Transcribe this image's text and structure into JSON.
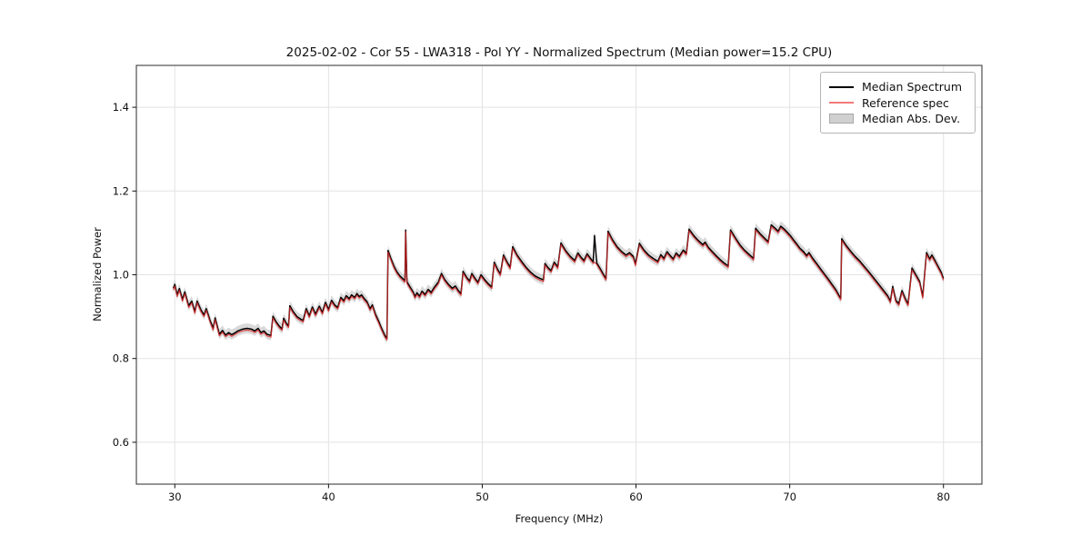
{
  "chart_data": {
    "type": "line",
    "title": "2025-02-02 - Cor 55 - LWA318 - Pol YY - Normalized Spectrum (Median power=15.2 CPU)",
    "xlabel": "Frequency (MHz)",
    "ylabel": "Normalized Power",
    "xlim": [
      27.5,
      82.5
    ],
    "ylim": [
      0.5,
      1.5
    ],
    "xticks": [
      30,
      40,
      50,
      60,
      70,
      80
    ],
    "yticks": [
      0.6,
      0.8,
      1.0,
      1.2,
      1.4
    ],
    "grid": true,
    "grid_color": "#e3e3e3",
    "spine_color": "#2b2b2b",
    "legend": {
      "position": "upper right",
      "entries": [
        {
          "label": "Median Spectrum",
          "swatch": "line",
          "color": "#000000"
        },
        {
          "label": "Reference spec",
          "swatch": "line",
          "color": "#f47a7a"
        },
        {
          "label": "Median Abs. Dev.",
          "swatch": "patch",
          "color": "#d0d0d0",
          "edge_color": "#a8a8a8"
        }
      ]
    },
    "series": [
      {
        "name": "Median Spectrum",
        "type": "line",
        "color": "#000000",
        "width": 1.5,
        "points": [
          [
            29.9,
            0.968
          ],
          [
            30.0,
            0.977
          ],
          [
            30.15,
            0.952
          ],
          [
            30.3,
            0.967
          ],
          [
            30.5,
            0.941
          ],
          [
            30.65,
            0.959
          ],
          [
            30.9,
            0.926
          ],
          [
            31.1,
            0.937
          ],
          [
            31.3,
            0.912
          ],
          [
            31.45,
            0.937
          ],
          [
            31.7,
            0.916
          ],
          [
            31.9,
            0.904
          ],
          [
            32.05,
            0.919
          ],
          [
            32.3,
            0.89
          ],
          [
            32.5,
            0.872
          ],
          [
            32.62,
            0.897
          ],
          [
            32.9,
            0.858
          ],
          [
            33.1,
            0.867
          ],
          [
            33.3,
            0.856
          ],
          [
            33.5,
            0.862
          ],
          [
            33.7,
            0.857
          ],
          [
            33.9,
            0.861
          ],
          [
            34.1,
            0.866
          ],
          [
            34.4,
            0.87
          ],
          [
            34.7,
            0.872
          ],
          [
            35.0,
            0.87
          ],
          [
            35.2,
            0.866
          ],
          [
            35.42,
            0.872
          ],
          [
            35.6,
            0.862
          ],
          [
            35.8,
            0.866
          ],
          [
            36.0,
            0.858
          ],
          [
            36.25,
            0.855
          ],
          [
            36.38,
            0.901
          ],
          [
            36.6,
            0.887
          ],
          [
            36.8,
            0.877
          ],
          [
            36.98,
            0.871
          ],
          [
            37.08,
            0.896
          ],
          [
            37.25,
            0.884
          ],
          [
            37.4,
            0.878
          ],
          [
            37.48,
            0.926
          ],
          [
            37.7,
            0.912
          ],
          [
            37.95,
            0.9
          ],
          [
            38.2,
            0.894
          ],
          [
            38.35,
            0.891
          ],
          [
            38.55,
            0.919
          ],
          [
            38.75,
            0.902
          ],
          [
            38.95,
            0.923
          ],
          [
            39.15,
            0.906
          ],
          [
            39.4,
            0.925
          ],
          [
            39.6,
            0.91
          ],
          [
            39.8,
            0.934
          ],
          [
            40.0,
            0.917
          ],
          [
            40.2,
            0.939
          ],
          [
            40.4,
            0.928
          ],
          [
            40.6,
            0.922
          ],
          [
            40.8,
            0.946
          ],
          [
            41.0,
            0.938
          ],
          [
            41.15,
            0.95
          ],
          [
            41.35,
            0.943
          ],
          [
            41.5,
            0.952
          ],
          [
            41.7,
            0.946
          ],
          [
            41.85,
            0.955
          ],
          [
            42.0,
            0.948
          ],
          [
            42.15,
            0.952
          ],
          [
            42.3,
            0.944
          ],
          [
            42.5,
            0.936
          ],
          [
            42.7,
            0.919
          ],
          [
            42.85,
            0.928
          ],
          [
            43.05,
            0.906
          ],
          [
            43.25,
            0.89
          ],
          [
            43.45,
            0.872
          ],
          [
            43.65,
            0.856
          ],
          [
            43.8,
            0.848
          ],
          [
            43.87,
            1.058
          ],
          [
            44.05,
            1.04
          ],
          [
            44.25,
            1.021
          ],
          [
            44.45,
            1.007
          ],
          [
            44.65,
            0.997
          ],
          [
            44.85,
            0.99
          ],
          [
            44.97,
            0.986
          ],
          [
            45.02,
            1.107
          ],
          [
            45.1,
            0.983
          ],
          [
            45.3,
            0.971
          ],
          [
            45.5,
            0.959
          ],
          [
            45.62,
            0.948
          ],
          [
            45.75,
            0.957
          ],
          [
            45.92,
            0.949
          ],
          [
            46.08,
            0.961
          ],
          [
            46.28,
            0.953
          ],
          [
            46.48,
            0.965
          ],
          [
            46.68,
            0.958
          ],
          [
            46.88,
            0.97
          ],
          [
            47.15,
            0.983
          ],
          [
            47.35,
            1.003
          ],
          [
            47.55,
            0.989
          ],
          [
            47.8,
            0.977
          ],
          [
            48.05,
            0.968
          ],
          [
            48.25,
            0.973
          ],
          [
            48.45,
            0.962
          ],
          [
            48.62,
            0.955
          ],
          [
            48.75,
            1.008
          ],
          [
            48.98,
            0.994
          ],
          [
            49.18,
            0.985
          ],
          [
            49.32,
            1.003
          ],
          [
            49.52,
            0.992
          ],
          [
            49.72,
            0.982
          ],
          [
            49.92,
            1.0
          ],
          [
            50.12,
            0.99
          ],
          [
            50.38,
            0.979
          ],
          [
            50.62,
            0.971
          ],
          [
            50.78,
            1.03
          ],
          [
            50.98,
            1.014
          ],
          [
            51.18,
            1.002
          ],
          [
            51.38,
            1.047
          ],
          [
            51.62,
            1.03
          ],
          [
            51.82,
            1.018
          ],
          [
            51.98,
            1.067
          ],
          [
            52.25,
            1.048
          ],
          [
            52.55,
            1.032
          ],
          [
            52.85,
            1.018
          ],
          [
            53.15,
            1.006
          ],
          [
            53.45,
            0.997
          ],
          [
            53.75,
            0.991
          ],
          [
            53.98,
            0.988
          ],
          [
            54.08,
            1.027
          ],
          [
            54.28,
            1.017
          ],
          [
            54.48,
            1.01
          ],
          [
            54.68,
            1.03
          ],
          [
            54.92,
            1.019
          ],
          [
            55.12,
            1.076
          ],
          [
            55.42,
            1.058
          ],
          [
            55.72,
            1.044
          ],
          [
            56.02,
            1.034
          ],
          [
            56.22,
            1.052
          ],
          [
            56.42,
            1.042
          ],
          [
            56.62,
            1.034
          ],
          [
            56.82,
            1.05
          ],
          [
            57.02,
            1.04
          ],
          [
            57.22,
            1.031
          ],
          [
            57.3,
            1.094
          ],
          [
            57.45,
            1.028
          ],
          [
            57.65,
            1.016
          ],
          [
            57.85,
            1.003
          ],
          [
            58.05,
            0.991
          ],
          [
            58.18,
            1.104
          ],
          [
            58.45,
            1.085
          ],
          [
            58.75,
            1.068
          ],
          [
            59.05,
            1.056
          ],
          [
            59.35,
            1.047
          ],
          [
            59.58,
            1.053
          ],
          [
            59.82,
            1.044
          ],
          [
            59.97,
            1.026
          ],
          [
            60.22,
            1.075
          ],
          [
            60.52,
            1.059
          ],
          [
            60.82,
            1.047
          ],
          [
            61.12,
            1.039
          ],
          [
            61.42,
            1.032
          ],
          [
            61.62,
            1.048
          ],
          [
            61.82,
            1.039
          ],
          [
            62.02,
            1.055
          ],
          [
            62.22,
            1.046
          ],
          [
            62.42,
            1.038
          ],
          [
            62.62,
            1.052
          ],
          [
            62.82,
            1.044
          ],
          [
            63.08,
            1.059
          ],
          [
            63.28,
            1.051
          ],
          [
            63.45,
            1.109
          ],
          [
            63.75,
            1.094
          ],
          [
            64.05,
            1.082
          ],
          [
            64.35,
            1.072
          ],
          [
            64.5,
            1.078
          ],
          [
            64.7,
            1.066
          ],
          [
            64.95,
            1.056
          ],
          [
            65.2,
            1.046
          ],
          [
            65.45,
            1.037
          ],
          [
            65.7,
            1.029
          ],
          [
            66.0,
            1.021
          ],
          [
            66.15,
            1.107
          ],
          [
            66.45,
            1.089
          ],
          [
            66.75,
            1.072
          ],
          [
            67.05,
            1.059
          ],
          [
            67.35,
            1.049
          ],
          [
            67.65,
            1.039
          ],
          [
            67.78,
            1.111
          ],
          [
            68.05,
            1.099
          ],
          [
            68.35,
            1.088
          ],
          [
            68.6,
            1.079
          ],
          [
            68.8,
            1.119
          ],
          [
            69.05,
            1.111
          ],
          [
            69.25,
            1.104
          ],
          [
            69.42,
            1.116
          ],
          [
            69.65,
            1.109
          ],
          [
            69.85,
            1.101
          ],
          [
            70.05,
            1.093
          ],
          [
            70.25,
            1.083
          ],
          [
            70.45,
            1.074
          ],
          [
            70.65,
            1.064
          ],
          [
            70.9,
            1.055
          ],
          [
            71.1,
            1.046
          ],
          [
            71.25,
            1.053
          ],
          [
            71.5,
            1.039
          ],
          [
            71.75,
            1.027
          ],
          [
            72.0,
            1.014
          ],
          [
            72.25,
            1.002
          ],
          [
            72.5,
            0.99
          ],
          [
            72.75,
            0.977
          ],
          [
            73.0,
            0.964
          ],
          [
            73.2,
            0.951
          ],
          [
            73.32,
            0.944
          ],
          [
            73.38,
            1.086
          ],
          [
            73.65,
            1.071
          ],
          [
            73.95,
            1.057
          ],
          [
            74.25,
            1.044
          ],
          [
            74.55,
            1.033
          ],
          [
            74.85,
            1.02
          ],
          [
            75.15,
            1.007
          ],
          [
            75.45,
            0.993
          ],
          [
            75.75,
            0.979
          ],
          [
            76.05,
            0.965
          ],
          [
            76.35,
            0.951
          ],
          [
            76.55,
            0.937
          ],
          [
            76.7,
            0.972
          ],
          [
            76.9,
            0.939
          ],
          [
            77.1,
            0.931
          ],
          [
            77.3,
            0.962
          ],
          [
            77.5,
            0.944
          ],
          [
            77.7,
            0.93
          ],
          [
            77.95,
            1.016
          ],
          [
            78.2,
            1.0
          ],
          [
            78.45,
            0.984
          ],
          [
            78.65,
            0.948
          ],
          [
            78.9,
            1.053
          ],
          [
            79.1,
            1.038
          ],
          [
            79.25,
            1.047
          ],
          [
            79.45,
            1.034
          ],
          [
            79.65,
            1.02
          ],
          [
            79.85,
            1.006
          ],
          [
            80.0,
            0.991
          ]
        ]
      },
      {
        "name": "Reference spec",
        "type": "line",
        "color": "#d62728",
        "alpha": 0.85,
        "width": 1.2,
        "derived_from": "Median Spectrum",
        "value_offset": -0.004,
        "overrides": {
          "57.3": 1.03
        }
      },
      {
        "name": "Median Abs. Dev.",
        "type": "band",
        "color": "#b9b9b9",
        "alpha": 0.55,
        "around": "Median Spectrum",
        "half_width": 0.012
      }
    ]
  }
}
